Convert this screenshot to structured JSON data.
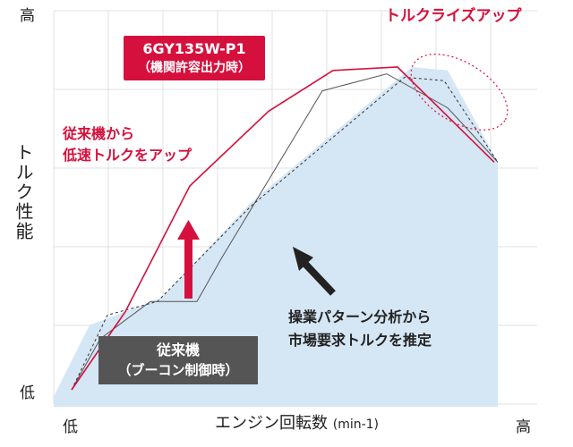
{
  "chart_data": {
    "type": "line",
    "ylabel": "トルク性能",
    "xlabel": "エンジン回転数",
    "xunit": "(min-1)",
    "y_high_label": "高",
    "y_low_label": "低",
    "x_low_label": "低",
    "x_high_label": "高",
    "grid": true,
    "series": [
      {
        "name": "6GY135W-P1（機関許容出力時）",
        "color": "#d6103c",
        "points": [
          [
            0.05,
            0.05
          ],
          [
            0.2,
            0.28
          ],
          [
            0.38,
            0.65
          ],
          [
            0.6,
            0.87
          ],
          [
            0.78,
            0.99
          ],
          [
            0.96,
            1.0
          ],
          [
            1.23,
            0.72
          ]
        ]
      },
      {
        "name": "従来機（ブーコン制御時）",
        "color": "#555555",
        "points": [
          [
            0.05,
            0.05
          ],
          [
            0.13,
            0.2
          ],
          [
            0.27,
            0.31
          ],
          [
            0.4,
            0.31
          ],
          [
            0.47,
            0.44
          ],
          [
            0.75,
            0.93
          ],
          [
            0.93,
            0.98
          ],
          [
            1.1,
            0.88
          ],
          [
            1.24,
            0.72
          ]
        ]
      },
      {
        "name": "操業パターン分析から市場要求トルクを推定",
        "color": "#333333",
        "style": "dashed",
        "points": [
          [
            0.05,
            0.05
          ],
          [
            0.15,
            0.27
          ],
          [
            0.29,
            0.31
          ],
          [
            0.55,
            0.59
          ],
          [
            0.98,
            0.97
          ],
          [
            1.09,
            0.96
          ],
          [
            1.24,
            0.72
          ]
        ]
      }
    ],
    "area": {
      "name": "市場要求トルク",
      "color": "#d5e6f5",
      "points": [
        [
          0.0,
          0.03
        ],
        [
          0.1,
          0.24
        ],
        [
          0.3,
          0.32
        ],
        [
          0.55,
          0.6
        ],
        [
          1.0,
          1.0
        ],
        [
          1.1,
          0.99
        ],
        [
          1.24,
          0.72
        ],
        [
          1.24,
          0.0
        ],
        [
          0.0,
          0.0
        ]
      ]
    }
  },
  "annotations": {
    "torque_rise": "トルクライズアップ",
    "model_name": "6GY135W-P1",
    "model_condition": "（機関許容出力時）",
    "low_speed_line1": "従来機から",
    "low_speed_line2": "低速トルクをアップ",
    "conventional_line1": "従来機",
    "conventional_line2": "（ブーコン制御時）",
    "market_line1": "操業パターン分析から",
    "market_line2": "市場要求トルクを推定"
  }
}
